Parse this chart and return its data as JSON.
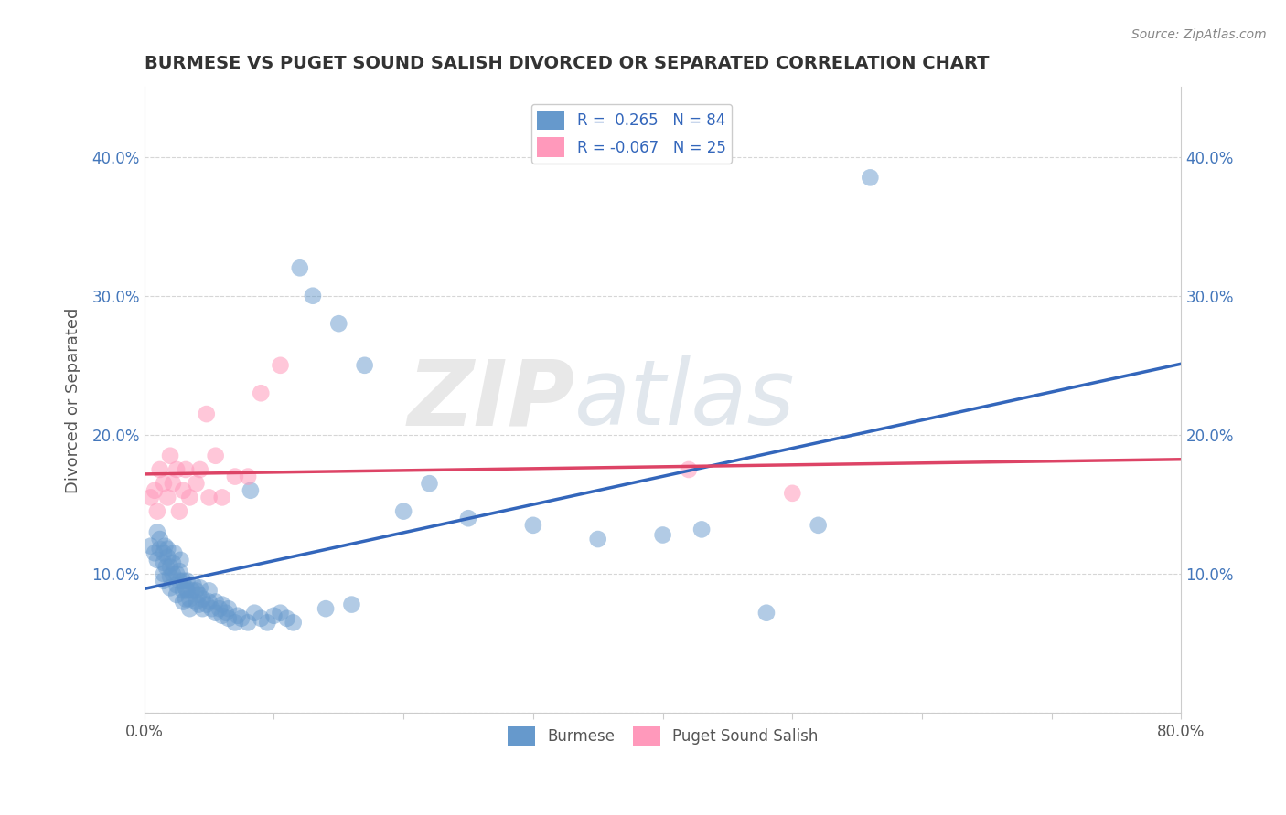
{
  "title": "BURMESE VS PUGET SOUND SALISH DIVORCED OR SEPARATED CORRELATION CHART",
  "source": "Source: ZipAtlas.com",
  "ylabel": "Divorced or Separated",
  "xlim": [
    0.0,
    0.8
  ],
  "ylim": [
    -0.02,
    0.46
  ],
  "plot_ylim": [
    0.0,
    0.45
  ],
  "xticks": [
    0.0,
    0.1,
    0.2,
    0.3,
    0.4,
    0.5,
    0.6,
    0.7,
    0.8
  ],
  "xticklabels": [
    "0.0%",
    "",
    "",
    "",
    "",
    "",
    "",
    "",
    "80.0%"
  ],
  "yticks": [
    0.0,
    0.1,
    0.2,
    0.3,
    0.4
  ],
  "yticklabels_left": [
    "",
    "10.0%",
    "20.0%",
    "30.0%",
    "40.0%"
  ],
  "yticklabels_right": [
    "",
    "10.0%",
    "20.0%",
    "30.0%",
    "40.0%"
  ],
  "legend_r1": "R =  0.265   N = 84",
  "legend_r2": "R = -0.067   N = 25",
  "blue_color": "#6699CC",
  "pink_color": "#FF99BB",
  "blue_line_color": "#3366BB",
  "pink_line_color": "#DD4466",
  "watermark_zip": "ZIP",
  "watermark_atlas": "atlas",
  "grid_color": "#CCCCCC",
  "blue_scatter_x": [
    0.005,
    0.008,
    0.01,
    0.01,
    0.012,
    0.012,
    0.015,
    0.015,
    0.015,
    0.015,
    0.016,
    0.017,
    0.018,
    0.018,
    0.02,
    0.02,
    0.02,
    0.022,
    0.022,
    0.023,
    0.025,
    0.025,
    0.025,
    0.027,
    0.027,
    0.028,
    0.03,
    0.03,
    0.03,
    0.032,
    0.032,
    0.033,
    0.033,
    0.035,
    0.035,
    0.037,
    0.038,
    0.04,
    0.04,
    0.042,
    0.042,
    0.043,
    0.045,
    0.045,
    0.048,
    0.05,
    0.05,
    0.052,
    0.055,
    0.055,
    0.058,
    0.06,
    0.06,
    0.063,
    0.065,
    0.065,
    0.07,
    0.072,
    0.075,
    0.08,
    0.082,
    0.085,
    0.09,
    0.095,
    0.1,
    0.105,
    0.11,
    0.115,
    0.12,
    0.13,
    0.14,
    0.15,
    0.16,
    0.17,
    0.2,
    0.22,
    0.25,
    0.3,
    0.35,
    0.4,
    0.43,
    0.48,
    0.52,
    0.56
  ],
  "blue_scatter_y": [
    0.12,
    0.115,
    0.11,
    0.13,
    0.118,
    0.125,
    0.095,
    0.1,
    0.108,
    0.115,
    0.12,
    0.105,
    0.112,
    0.118,
    0.09,
    0.098,
    0.105,
    0.1,
    0.108,
    0.115,
    0.085,
    0.092,
    0.1,
    0.095,
    0.102,
    0.11,
    0.08,
    0.088,
    0.095,
    0.082,
    0.09,
    0.088,
    0.095,
    0.075,
    0.082,
    0.088,
    0.092,
    0.08,
    0.088,
    0.078,
    0.085,
    0.09,
    0.075,
    0.082,
    0.078,
    0.08,
    0.088,
    0.075,
    0.072,
    0.08,
    0.075,
    0.07,
    0.078,
    0.072,
    0.068,
    0.075,
    0.065,
    0.07,
    0.068,
    0.065,
    0.16,
    0.072,
    0.068,
    0.065,
    0.07,
    0.072,
    0.068,
    0.065,
    0.32,
    0.3,
    0.075,
    0.28,
    0.078,
    0.25,
    0.145,
    0.165,
    0.14,
    0.135,
    0.125,
    0.128,
    0.132,
    0.072,
    0.135,
    0.385
  ],
  "pink_scatter_x": [
    0.005,
    0.008,
    0.01,
    0.012,
    0.015,
    0.018,
    0.02,
    0.022,
    0.025,
    0.027,
    0.03,
    0.032,
    0.035,
    0.04,
    0.043,
    0.048,
    0.05,
    0.055,
    0.06,
    0.07,
    0.08,
    0.09,
    0.105,
    0.42,
    0.5
  ],
  "pink_scatter_y": [
    0.155,
    0.16,
    0.145,
    0.175,
    0.165,
    0.155,
    0.185,
    0.165,
    0.175,
    0.145,
    0.16,
    0.175,
    0.155,
    0.165,
    0.175,
    0.215,
    0.155,
    0.185,
    0.155,
    0.17,
    0.17,
    0.23,
    0.25,
    0.175,
    0.158
  ]
}
